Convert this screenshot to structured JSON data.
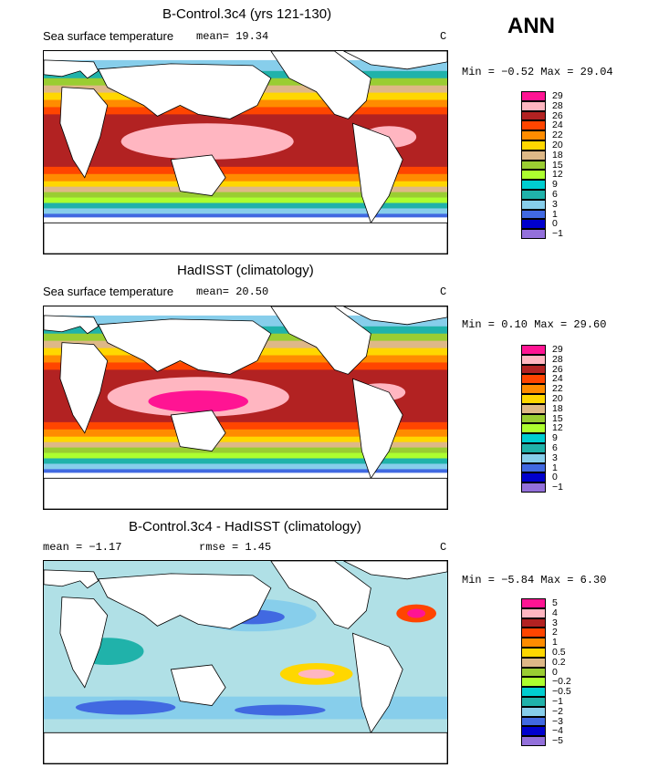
{
  "season": "ANN",
  "colors": {
    "ocean_cool": "#b0e0e6",
    "land": "#ffffff",
    "coast": "#000000"
  },
  "panels": [
    {
      "title": "B-Control.3c4 (yrs 121-130)",
      "subtitle_left": "Sea surface temperature",
      "mean_text": "mean=   19.34",
      "units": "C",
      "minmax_text": "Min =   −0.52 Max =   29.04",
      "legend": {
        "labels": [
          "29",
          "28",
          "26",
          "24",
          "22",
          "20",
          "18",
          "15",
          "12",
          "9",
          "6",
          "3",
          "1",
          "0",
          "−1"
        ],
        "colors": [
          "#ff1493",
          "#ffb6c1",
          "#b22222",
          "#ff4500",
          "#ff8c00",
          "#ffd700",
          "#deb887",
          "#9acd32",
          "#adff2f",
          "#00ced1",
          "#20b2aa",
          "#87ceeb",
          "#4169e1",
          "#0000cd",
          "#9370db"
        ]
      }
    },
    {
      "title": "HadISST (climatology)",
      "subtitle_left": "Sea surface temperature",
      "mean_text": "mean=   20.50",
      "units": "C",
      "minmax_text": "Min =    0.10 Max =   29.60",
      "legend": {
        "labels": [
          "29",
          "28",
          "26",
          "24",
          "22",
          "20",
          "18",
          "15",
          "12",
          "9",
          "6",
          "3",
          "1",
          "0",
          "−1"
        ],
        "colors": [
          "#ff1493",
          "#ffb6c1",
          "#b22222",
          "#ff4500",
          "#ff8c00",
          "#ffd700",
          "#deb887",
          "#9acd32",
          "#adff2f",
          "#00ced1",
          "#20b2aa",
          "#87ceeb",
          "#4169e1",
          "#0000cd",
          "#9370db"
        ]
      }
    },
    {
      "title": "B-Control.3c4 - HadISST (climatology)",
      "mean_text": "mean =   −1.17",
      "rmse_text": "rmse =    1.45",
      "units": "C",
      "minmax_text": "Min =   −5.84 Max =    6.30",
      "legend": {
        "labels": [
          "5",
          "4",
          "3",
          "2",
          "1",
          "0.5",
          "0.2",
          "0",
          "−0.2",
          "−0.5",
          "−1",
          "−2",
          "−3",
          "−4",
          "−5"
        ],
        "colors": [
          "#ff1493",
          "#ffb6c1",
          "#b22222",
          "#ff4500",
          "#ff8c00",
          "#ffd700",
          "#deb887",
          "#9acd32",
          "#adff2f",
          "#00ced1",
          "#20b2aa",
          "#87ceeb",
          "#4169e1",
          "#0000cd",
          "#9370db"
        ]
      }
    }
  ]
}
